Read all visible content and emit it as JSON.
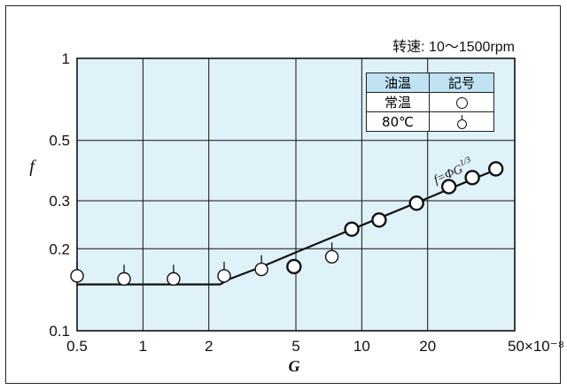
{
  "chart_data": {
    "type": "scatter",
    "condition_label": "转速: 10～1500rpm",
    "xlabel": "G",
    "ylabel": "f",
    "x_scale": "log",
    "y_scale": "log",
    "xlim": [
      0.5,
      50
    ],
    "ylim": [
      0.1,
      1
    ],
    "x_ticks": [
      0.5,
      1,
      2,
      5,
      10,
      20,
      50
    ],
    "x_tick_labels": [
      "0.5",
      "1",
      "2",
      "5",
      "10",
      "20",
      "50×10⁻⁸"
    ],
    "y_ticks": [
      0.1,
      0.2,
      0.3,
      0.5,
      1
    ],
    "y_tick_labels": [
      "0.1",
      "0.2",
      "0.3",
      "0.5",
      "1"
    ],
    "x_gridlines": [
      1,
      2,
      5,
      10,
      20
    ],
    "y_gridlines": [
      0.2,
      0.3,
      0.5
    ],
    "grid": true,
    "plot_background": "#dff1f9",
    "curve_label": "f = ΦG^1/3",
    "curve": {
      "name": "f = ΦG^1/3",
      "x": [
        0.5,
        2.25,
        2.5,
        3.5,
        5,
        7,
        10,
        15,
        20,
        30,
        40
      ],
      "y": [
        0.148,
        0.148,
        0.155,
        0.172,
        0.194,
        0.217,
        0.244,
        0.279,
        0.307,
        0.352,
        0.387
      ]
    },
    "legend": {
      "header": [
        "油温",
        "記号"
      ],
      "rows": [
        {
          "label": "常温",
          "symbol": "open-circle"
        },
        {
          "label": "80℃",
          "symbol": "circle-with-tick"
        }
      ]
    },
    "series": [
      {
        "name": "常温",
        "symbol": "open-circle",
        "x": [
          4.9,
          9.0,
          12.0,
          17.8,
          25.0,
          32.0,
          41.0
        ],
        "y": [
          0.172,
          0.236,
          0.255,
          0.294,
          0.338,
          0.365,
          0.393
        ]
      },
      {
        "name": "80℃",
        "symbol": "circle-with-tick",
        "x": [
          0.5,
          0.82,
          1.38,
          2.35,
          3.48,
          7.3
        ],
        "y": [
          0.159,
          0.155,
          0.155,
          0.159,
          0.168,
          0.187
        ]
      }
    ]
  }
}
